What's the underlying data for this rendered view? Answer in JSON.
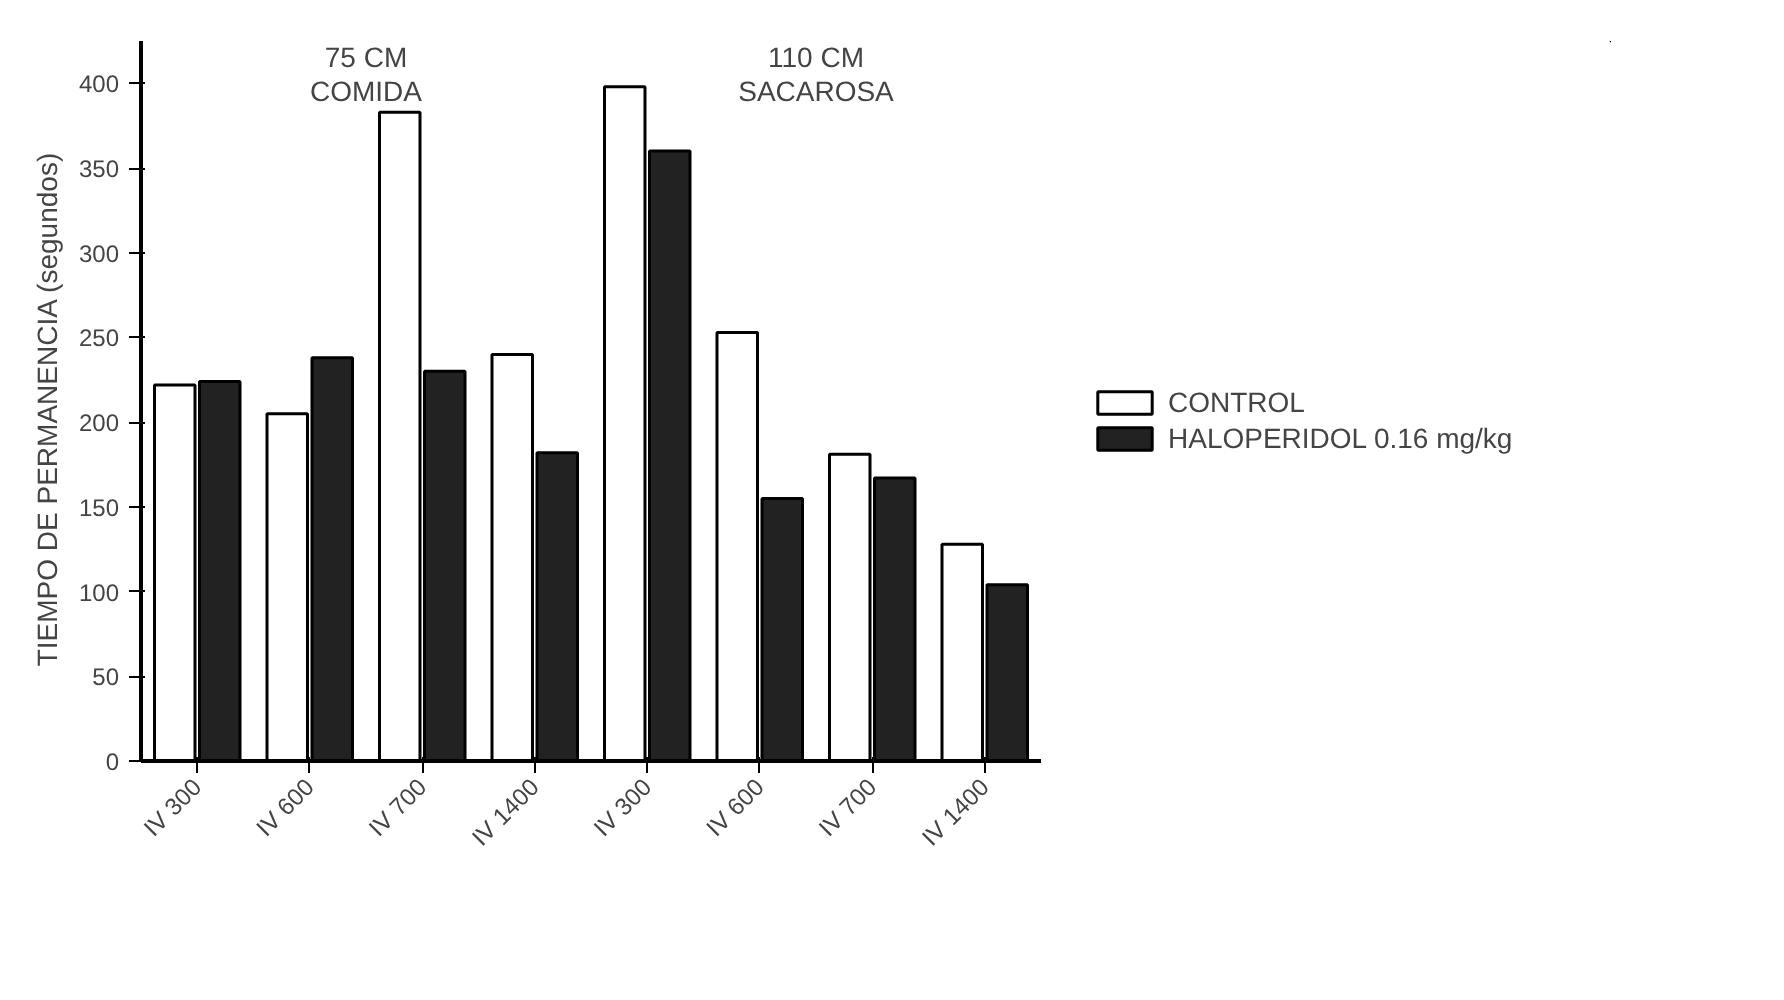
{
  "chart_data": {
    "type": "bar",
    "ylabel": "TIEMPO  DE  PERMANENCIA (segundos)",
    "categories": [
      "IV 300",
      "IV 600",
      "IV 700",
      "IV 1400",
      "IV 300",
      "IV 600",
      "IV 700",
      "IV 1400"
    ],
    "series": [
      {
        "name": "CONTROL",
        "color": "#ffffff",
        "values": [
          222,
          205,
          383,
          240,
          398,
          253,
          181,
          128
        ]
      },
      {
        "name": "HALOPERIDOL 0.16 mg/kg",
        "color": "#222222",
        "values": [
          224,
          238,
          230,
          182,
          360,
          155,
          167,
          104
        ]
      }
    ],
    "annotations": [
      "75 CM\nCOMIDA",
      "110 CM\nSACAROSA"
    ],
    "ylim": [
      0,
      425
    ],
    "yticks": [
      0,
      50,
      100,
      150,
      200,
      250,
      300,
      350,
      400
    ],
    "grid": false,
    "legend": "right"
  }
}
